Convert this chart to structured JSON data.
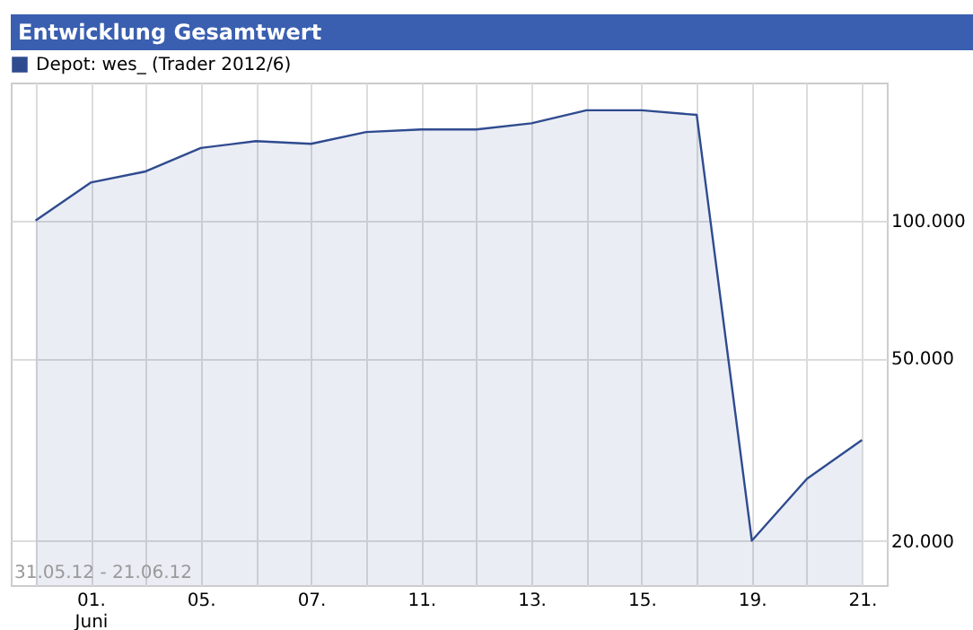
{
  "chart_data": {
    "type": "area",
    "title": "Entwicklung Gesamtwert",
    "categories": [
      null,
      "01.\nJuni",
      null,
      "05.",
      null,
      "07.",
      null,
      "11.",
      null,
      "13.",
      null,
      "15.",
      null,
      "19.",
      null,
      "21."
    ],
    "series": [
      {
        "name": "Depot: wes_ (Trader 2012/6)",
        "color": "#2f4b8f",
        "values": [
          100000,
          121000,
          128000,
          144000,
          149000,
          147000,
          156000,
          158000,
          158000,
          163000,
          174000,
          174000,
          170000,
          20000,
          27300,
          33200
        ]
      }
    ],
    "log": true,
    "ylim": [
      16000,
      200000
    ],
    "yticks": [
      {
        "value": 20000,
        "label": "20.000"
      },
      {
        "value": 50000,
        "label": "50.000"
      },
      {
        "value": 100000,
        "label": "100.000"
      }
    ],
    "grid": true,
    "legend": "top left",
    "annotations": [
      "31.05.12 - 21.06.12"
    ]
  }
}
